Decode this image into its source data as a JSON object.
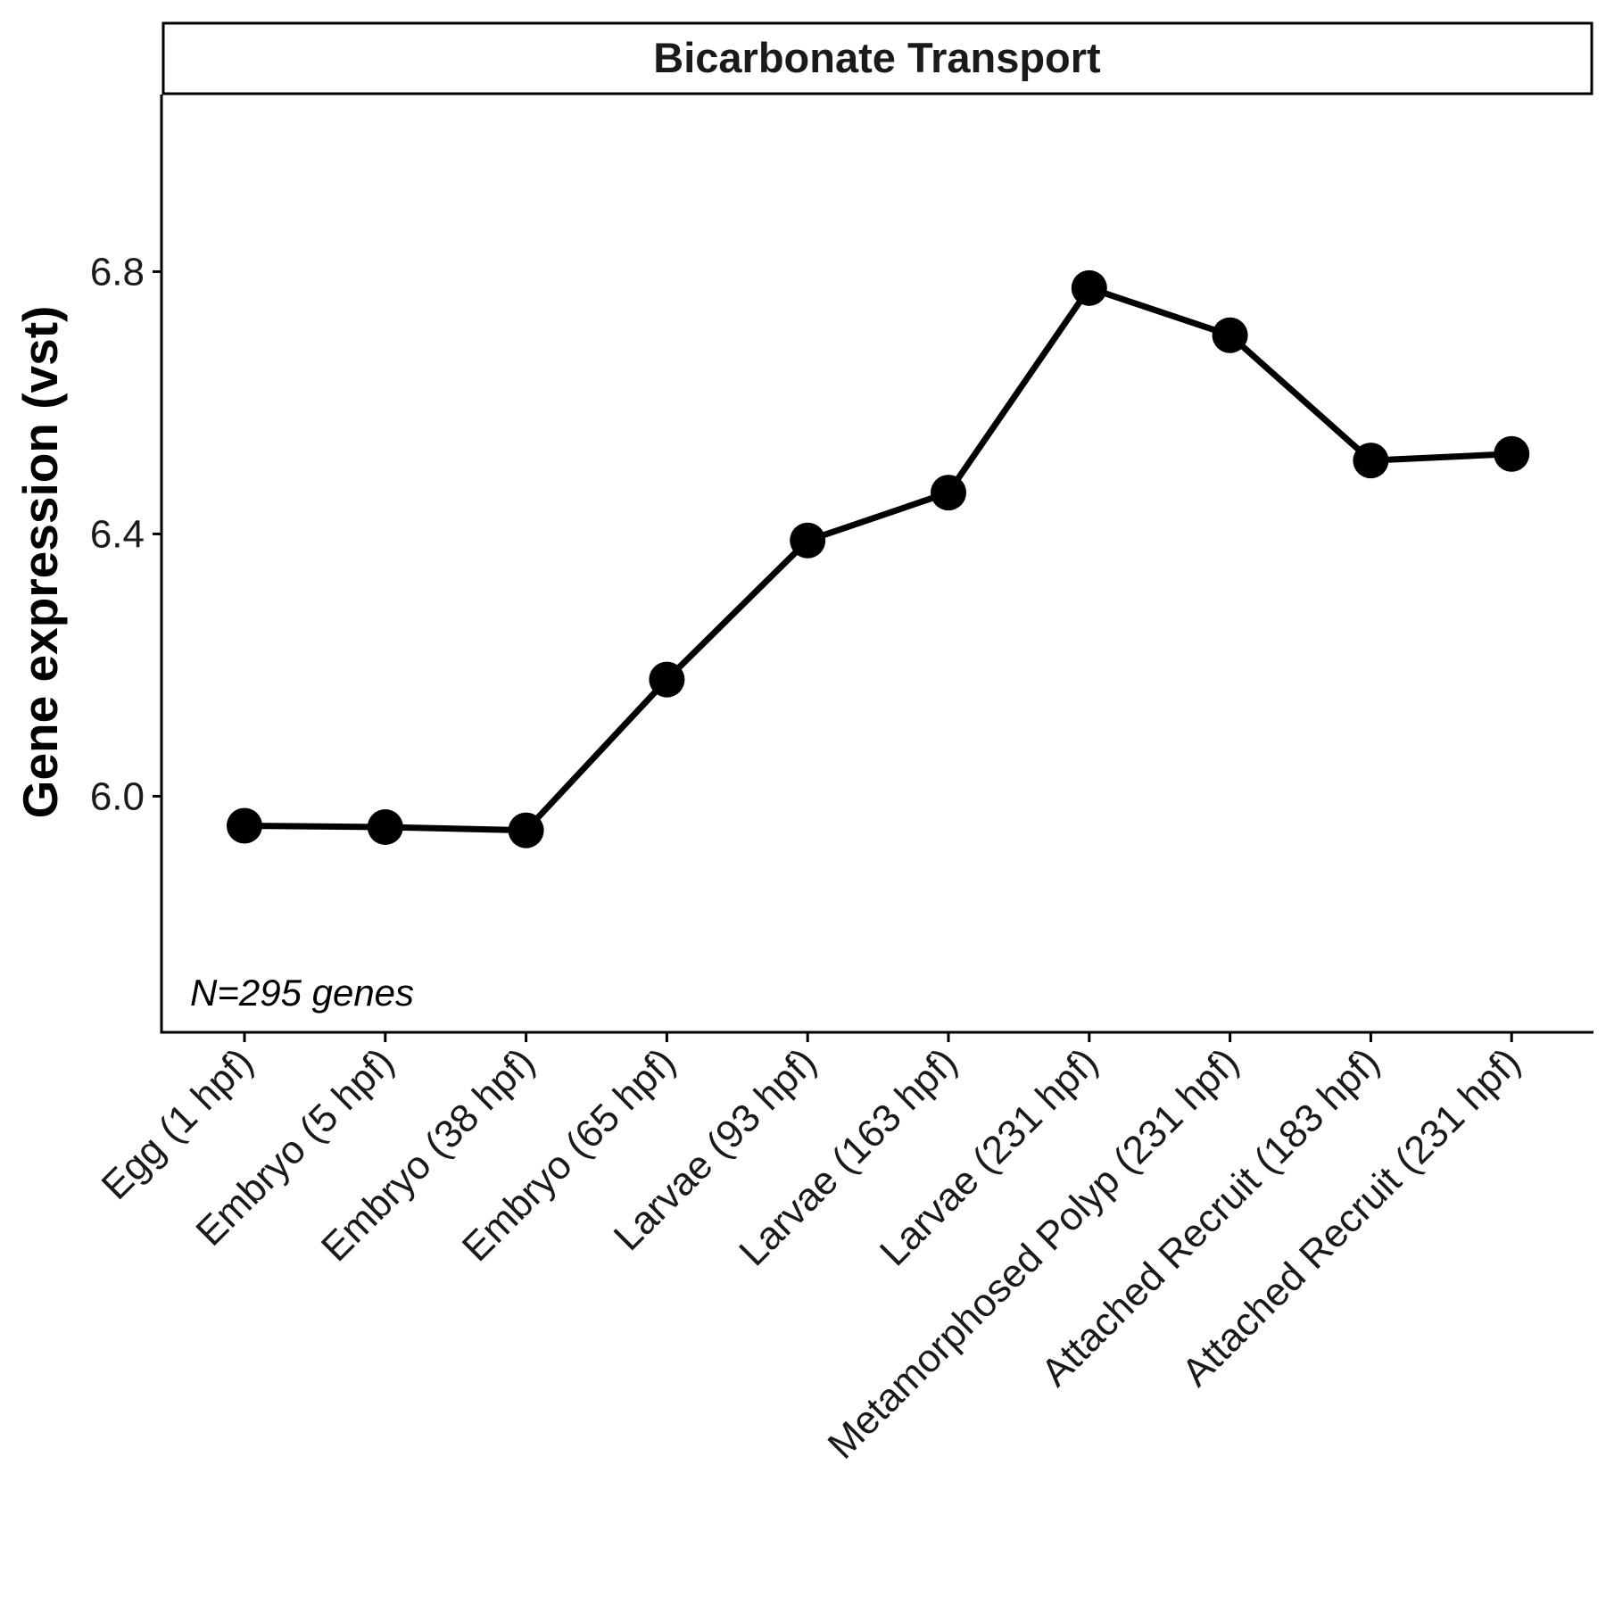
{
  "chart_data": {
    "type": "line",
    "title": "Bicarbonate Transport",
    "xlabel": "",
    "ylabel": "Gene expression (vst)",
    "categories": [
      "Egg (1 hpf)",
      "Embryo (5 hpf)",
      "Embryo (38 hpf)",
      "Embryo (65 hpf)",
      "Larvae (93 hpf)",
      "Larvae (163 hpf)",
      "Larvae (231 hpf)",
      "Metamorphosed Polyp (231 hpf)",
      "Attached Recruit (183 hpf)",
      "Attached Recruit (231 hpf)"
    ],
    "values": [
      5.955,
      5.953,
      5.948,
      6.178,
      6.39,
      6.463,
      6.775,
      6.703,
      6.512,
      6.522
    ],
    "ylim": [
      5.64,
      7.07
    ],
    "yticks": [
      "6.0",
      "6.4",
      "6.8"
    ],
    "ytick_values": [
      6.0,
      6.4,
      6.8
    ],
    "annotation": "N=295 genes",
    "grid": false,
    "legend": "none",
    "line_color": "#000000",
    "point_color": "#000000"
  }
}
